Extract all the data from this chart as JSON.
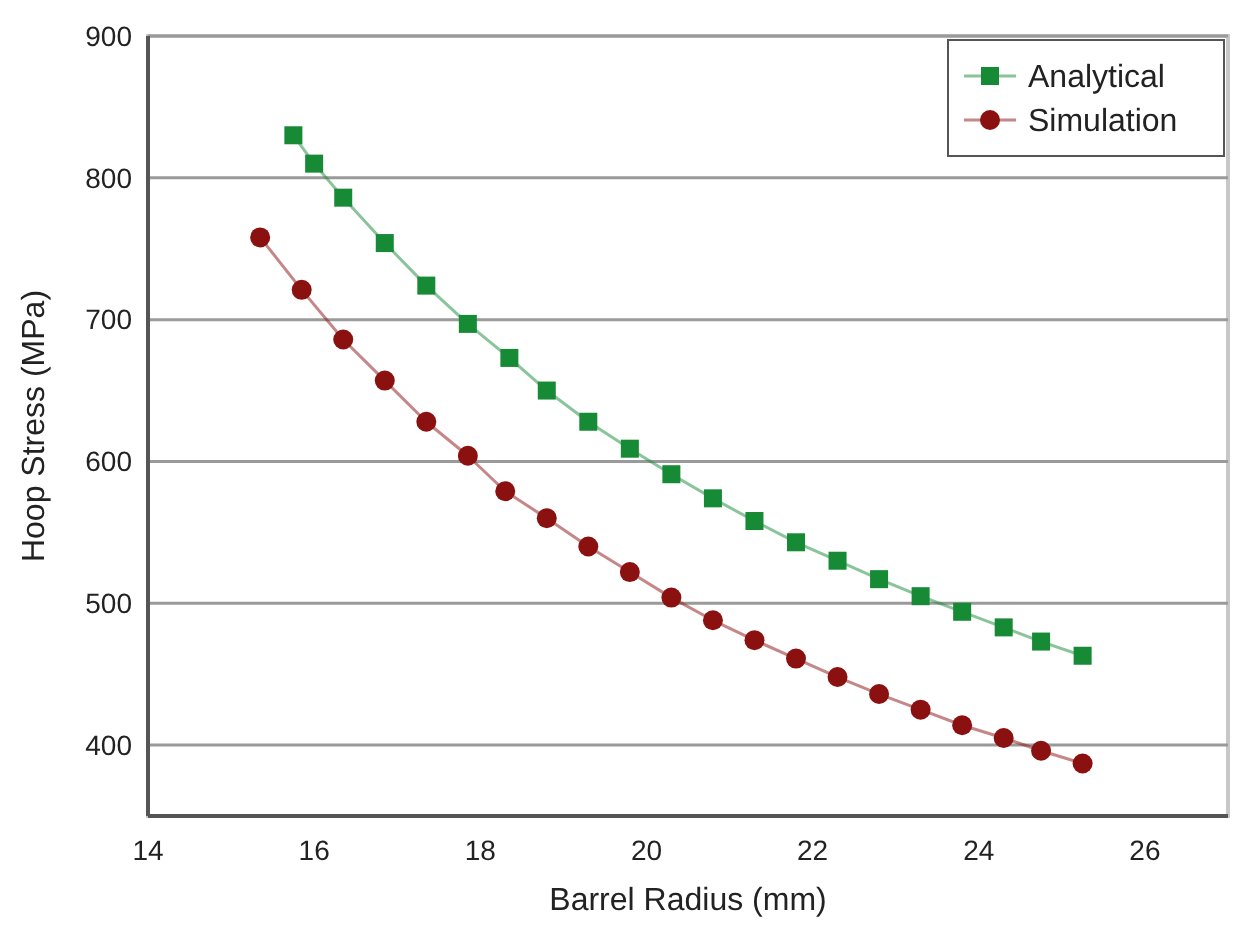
{
  "chart_data": {
    "type": "line",
    "xlabel": "Barrel Radius (mm)",
    "ylabel": "Hoop Stress (MPa)",
    "xlim": [
      14,
      27
    ],
    "xticks": [
      14,
      16,
      18,
      20,
      22,
      24,
      26
    ],
    "ylim": [
      350,
      900
    ],
    "yticks": [
      400,
      500,
      600,
      700,
      800,
      900
    ],
    "grid": "y",
    "legend": "top right",
    "series": [
      {
        "name": "Analytical",
        "color": "#168a35",
        "marker": "square",
        "x": [
          15.75,
          16.0,
          16.35,
          16.85,
          17.35,
          17.85,
          18.35,
          18.8,
          19.3,
          19.8,
          20.3,
          20.8,
          21.3,
          21.8,
          22.3,
          22.8,
          23.3,
          23.8,
          24.3,
          24.75,
          25.25
        ],
        "values": [
          830,
          810,
          786,
          754,
          724,
          697,
          673,
          650,
          628,
          609,
          591,
          574,
          558,
          543,
          530,
          517,
          505,
          494,
          483,
          473,
          463
        ]
      },
      {
        "name": "Simulation",
        "color": "#8b1010",
        "marker": "circle",
        "x": [
          15.35,
          15.85,
          16.35,
          16.85,
          17.35,
          17.85,
          18.3,
          18.8,
          19.3,
          19.8,
          20.3,
          20.8,
          21.3,
          21.8,
          22.3,
          22.8,
          23.3,
          23.8,
          24.3,
          24.75,
          25.25
        ],
        "values": [
          758,
          721,
          686,
          657,
          628,
          604,
          579,
          560,
          540,
          522,
          504,
          488,
          474,
          461,
          448,
          436,
          425,
          414,
          405,
          396,
          387
        ]
      }
    ]
  }
}
